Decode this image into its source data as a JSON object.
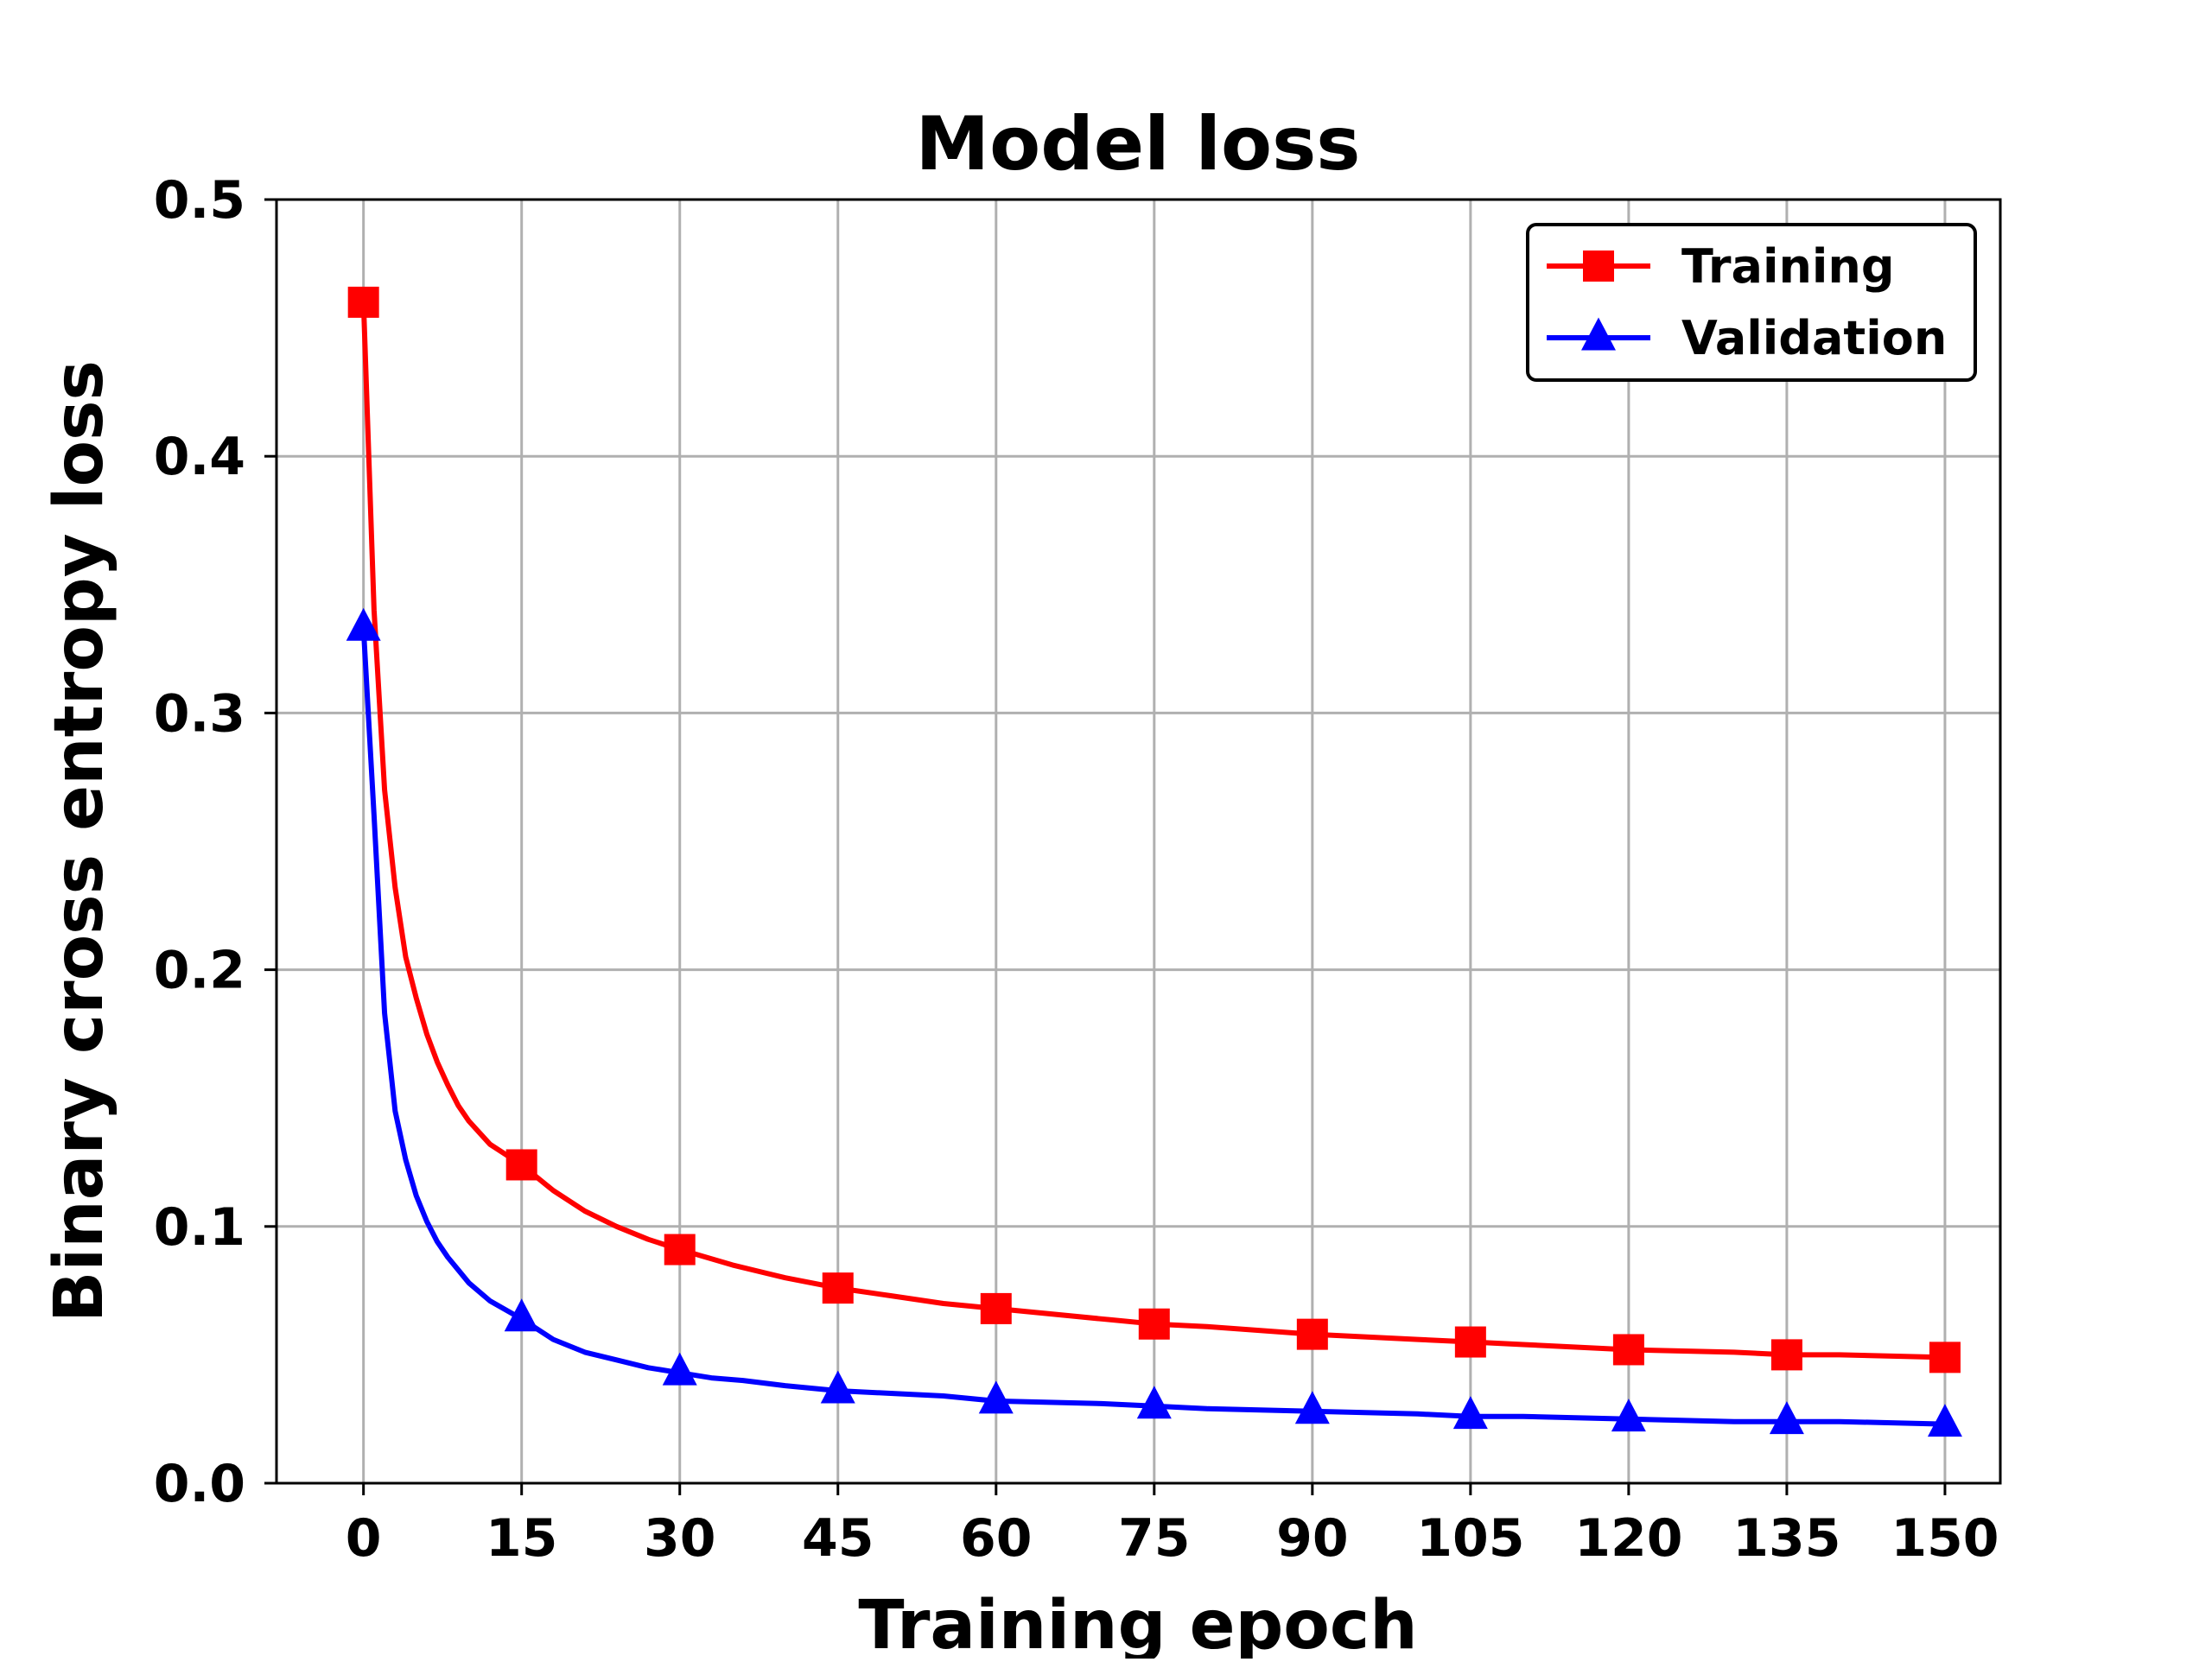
{
  "colors": {
    "background": "#ffffff",
    "axis": "#000000",
    "grid": "#b0b0b0",
    "training": "#ff0000",
    "validation": "#0000ff"
  },
  "chart_data": {
    "type": "line",
    "title": "Model loss",
    "xlabel": "Training epoch",
    "ylabel": "Binary cross entropy loss",
    "xlim": [
      -8.25,
      155.25
    ],
    "ylim": [
      0.0,
      0.5
    ],
    "xticks": [
      0,
      15,
      30,
      45,
      60,
      75,
      90,
      105,
      120,
      135,
      150
    ],
    "xtick_labels": [
      "0",
      "15",
      "30",
      "45",
      "60",
      "75",
      "90",
      "105",
      "120",
      "135",
      "150"
    ],
    "yticks": [
      0.0,
      0.1,
      0.2,
      0.3,
      0.4,
      0.5
    ],
    "ytick_labels": [
      "0.0",
      "0.1",
      "0.2",
      "0.3",
      "0.4",
      "0.5"
    ],
    "grid": true,
    "legend_position": "top-right",
    "series": [
      {
        "name": "Training",
        "color": "#ff0000",
        "marker": "square",
        "marker_every": 15,
        "x": [
          0,
          1,
          2,
          3,
          4,
          5,
          6,
          7,
          8,
          9,
          10,
          12,
          15,
          18,
          21,
          24,
          27,
          30,
          35,
          40,
          45,
          50,
          55,
          60,
          70,
          75,
          80,
          90,
          100,
          105,
          110,
          120,
          130,
          135,
          140,
          150
        ],
        "y": [
          0.46,
          0.34,
          0.27,
          0.232,
          0.205,
          0.189,
          0.175,
          0.164,
          0.155,
          0.147,
          0.141,
          0.132,
          0.124,
          0.114,
          0.106,
          0.1,
          0.095,
          0.091,
          0.085,
          0.08,
          0.076,
          0.073,
          0.07,
          0.068,
          0.064,
          0.062,
          0.061,
          0.058,
          0.056,
          0.055,
          0.054,
          0.052,
          0.051,
          0.05,
          0.05,
          0.049
        ]
      },
      {
        "name": "Validation",
        "color": "#0000ff",
        "marker": "triangle",
        "marker_every": 15,
        "x": [
          0,
          1,
          2,
          3,
          4,
          5,
          6,
          7,
          8,
          9,
          10,
          12,
          15,
          18,
          21,
          24,
          27,
          30,
          33,
          36,
          40,
          45,
          50,
          55,
          60,
          70,
          75,
          80,
          90,
          100,
          105,
          110,
          120,
          130,
          135,
          140,
          150
        ],
        "y": [
          0.333,
          0.26,
          0.183,
          0.145,
          0.126,
          0.112,
          0.102,
          0.094,
          0.088,
          0.083,
          0.078,
          0.071,
          0.064,
          0.056,
          0.051,
          0.048,
          0.045,
          0.043,
          0.041,
          0.04,
          0.038,
          0.036,
          0.035,
          0.034,
          0.032,
          0.031,
          0.03,
          0.029,
          0.028,
          0.027,
          0.026,
          0.026,
          0.025,
          0.024,
          0.024,
          0.024,
          0.023
        ]
      }
    ]
  }
}
